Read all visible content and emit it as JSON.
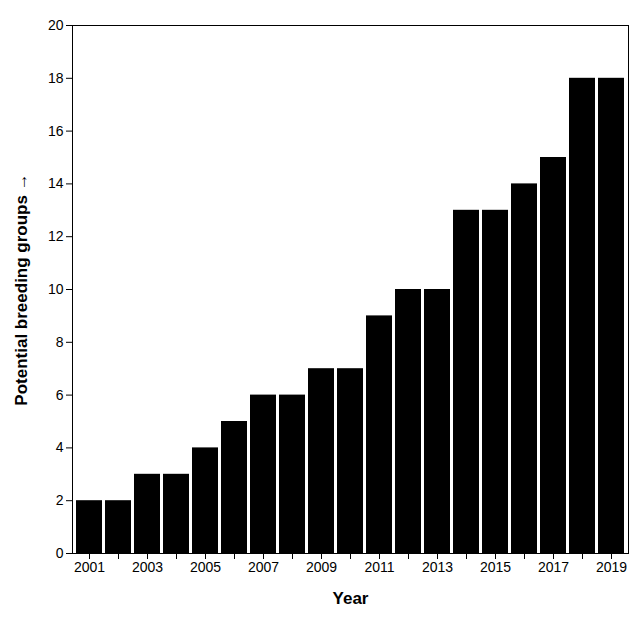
{
  "chart_data": {
    "type": "bar",
    "xlabel": "Year",
    "ylabel": "Potential breeding groups",
    "categories": [
      "2001",
      null,
      "2003",
      null,
      "2005",
      null,
      "2007",
      null,
      "2009",
      null,
      "2011",
      null,
      "2013",
      null,
      "2015",
      null,
      "2017",
      null,
      "2019"
    ],
    "values": [
      2,
      2,
      3,
      3,
      4,
      5,
      6,
      6,
      7,
      7,
      9,
      10,
      10,
      13,
      13,
      14,
      15,
      18,
      18
    ],
    "color": "#000000",
    "ylim": [
      0,
      20
    ],
    "yticks": [
      0,
      2,
      4,
      6,
      8,
      10,
      12,
      14,
      16,
      18,
      20
    ],
    "grid": false
  }
}
